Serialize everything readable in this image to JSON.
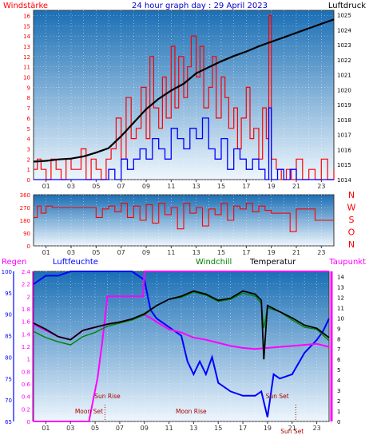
{
  "colors": {
    "wind_max": "#ff0000",
    "wind_avg": "#0000ff",
    "pressure": "#000000",
    "direction": "#ff0000",
    "humidity": "#0000ff",
    "windchill": "#008000",
    "temperature": "#000000",
    "dewpoint": "#ff00ff",
    "rain": "#ff00ff",
    "annotation": "#aa0000",
    "title": "#0000cc",
    "axis": "#333333",
    "plot_top": "#1b6fb5",
    "plot_bottom": "#eef6fd"
  },
  "chart_data": [
    {
      "type": "line",
      "title": "24 hour graph day : 29 April 2023",
      "ylabel_left": "Windstärke",
      "ylabel_right": "Luftdruck",
      "x_ticks": [
        "01",
        "03",
        "05",
        "07",
        "09",
        "11",
        "13",
        "15",
        "17",
        "19",
        "21",
        "23"
      ],
      "y_ticks_left": [
        "0",
        "1",
        "2",
        "3",
        "4",
        "5",
        "6",
        "7",
        "8",
        "9",
        "10",
        "11",
        "12",
        "13",
        "14",
        "15",
        "16"
      ],
      "y_ticks_right": [
        "1014",
        "1015",
        "1016",
        "1017",
        "1018",
        "1019",
        "1020",
        "1021",
        "1022",
        "1023",
        "1024",
        "1025"
      ],
      "xlim": [
        0,
        24
      ],
      "ylim_left": [
        0,
        16.5
      ],
      "ylim_right": [
        1014,
        1025.3
      ],
      "series": [
        {
          "name": "Windstärke",
          "role": "wind_max",
          "x": [
            0,
            0.3,
            0.6,
            1,
            1.4,
            1.8,
            2.2,
            2.6,
            3,
            3.4,
            3.8,
            4.2,
            4.6,
            5,
            5.4,
            5.8,
            6.2,
            6.6,
            7,
            7.4,
            7.8,
            8.2,
            8.6,
            9,
            9.3,
            9.6,
            10,
            10.3,
            10.6,
            11,
            11.3,
            11.6,
            12,
            12.3,
            12.6,
            13,
            13.3,
            13.6,
            14,
            14.3,
            14.6,
            15,
            15.3,
            15.6,
            16,
            16.3,
            16.6,
            17,
            17.3,
            17.6,
            18,
            18.3,
            18.6,
            18.8,
            19,
            19.4,
            19.8,
            20.2,
            20.6,
            21,
            21.5,
            22,
            22.5,
            23,
            23.5,
            24
          ],
          "y": [
            1,
            2,
            1,
            0,
            2,
            1,
            0,
            2,
            1,
            1,
            3,
            0,
            2,
            1,
            0,
            2,
            3,
            6,
            2,
            8,
            4,
            5,
            9,
            4,
            12,
            7,
            5,
            10,
            6,
            13,
            7,
            12,
            8,
            11,
            14,
            10,
            13,
            7,
            9,
            12,
            6,
            10,
            8,
            5,
            7,
            3,
            6,
            9,
            4,
            5,
            2,
            7,
            4,
            16,
            2,
            1,
            0,
            1,
            0,
            2,
            0,
            1,
            0,
            2,
            0,
            1
          ]
        },
        {
          "name": "",
          "role": "wind_avg",
          "x": [
            0,
            0.5,
            1,
            1.5,
            2,
            2.5,
            3,
            3.5,
            4,
            4.5,
            5,
            5.5,
            6,
            6.5,
            7,
            7.5,
            8,
            8.5,
            9,
            9.5,
            10,
            10.5,
            11,
            11.5,
            12,
            12.5,
            13,
            13.5,
            14,
            14.5,
            15,
            15.5,
            16,
            16.5,
            17,
            17.5,
            18,
            18.5,
            18.8,
            19,
            19.5,
            20,
            20.5,
            21,
            22,
            23,
            24
          ],
          "y": [
            0,
            0,
            0,
            0,
            0,
            0,
            0,
            0,
            0,
            0,
            0,
            0,
            1,
            0,
            2,
            1,
            2,
            3,
            2,
            4,
            3,
            2,
            5,
            4,
            3,
            5,
            4,
            6,
            3,
            2,
            4,
            1,
            3,
            2,
            1,
            2,
            1,
            0,
            7,
            0,
            1,
            0,
            1,
            0,
            0,
            0,
            0
          ]
        },
        {
          "name": "",
          "role": "pressure",
          "x": [
            0,
            1,
            2,
            3,
            4,
            5,
            6,
            7,
            8,
            9,
            10,
            11,
            12,
            13,
            14,
            15,
            16,
            17,
            18,
            19,
            20,
            21,
            22,
            23,
            24
          ],
          "y": [
            1015.2,
            1015.25,
            1015.35,
            1015.4,
            1015.55,
            1015.8,
            1016.1,
            1016.9,
            1017.8,
            1018.7,
            1019.4,
            1019.95,
            1020.4,
            1021.1,
            1021.5,
            1021.9,
            1022.25,
            1022.55,
            1022.9,
            1023.2,
            1023.5,
            1023.8,
            1024.1,
            1024.4,
            1024.7
          ]
        }
      ]
    },
    {
      "type": "line",
      "title": "",
      "ylabel_right_letters": [
        "N",
        "W",
        "S",
        "O",
        "N"
      ],
      "y_ticks_left": [
        "0",
        "90",
        "180",
        "270",
        "360"
      ],
      "x_ticks": [
        "01",
        "03",
        "05",
        "07",
        "09",
        "11",
        "13",
        "15",
        "17",
        "19",
        "21",
        "23"
      ],
      "xlim": [
        0,
        24
      ],
      "ylim": [
        0,
        360
      ],
      "series": [
        {
          "name": "",
          "role": "direction",
          "x": [
            0,
            0.3,
            0.6,
            1,
            1.5,
            2,
            2.5,
            3,
            3.5,
            4,
            4.5,
            5,
            5.5,
            6,
            6.5,
            7,
            7.5,
            8,
            8.5,
            9,
            9.5,
            10,
            10.5,
            11,
            11.5,
            12,
            12.5,
            13,
            13.5,
            14,
            14.5,
            15,
            15.5,
            16,
            16.5,
            17,
            17.5,
            18,
            18.5,
            19,
            19.5,
            20,
            20.5,
            21,
            22,
            22.5,
            23,
            24
          ],
          "y": [
            200,
            280,
            230,
            280,
            270,
            270,
            270,
            270,
            270,
            270,
            270,
            200,
            260,
            280,
            240,
            300,
            200,
            280,
            180,
            290,
            160,
            300,
            220,
            270,
            120,
            300,
            230,
            270,
            140,
            260,
            220,
            300,
            180,
            280,
            260,
            300,
            240,
            280,
            250,
            230,
            230,
            230,
            100,
            260,
            260,
            180,
            180,
            180
          ]
        }
      ]
    },
    {
      "type": "line",
      "title": "",
      "legend": [
        "Regen",
        "Luftfeuchte",
        "Windchill",
        "Temperatur",
        "Taupunkt"
      ],
      "y_ticks_rain": [
        "0",
        "0.2",
        "0.4",
        "0.6",
        "0.8",
        "1",
        "1.2",
        "1.4",
        "1.6",
        "1.8",
        "2",
        "2.2",
        "2.4"
      ],
      "y_ticks_humidity": [
        "65",
        "70",
        "75",
        "80",
        "85",
        "90",
        "95",
        "100"
      ],
      "y_ticks_temp": [
        "0",
        "1",
        "2",
        "3",
        "4",
        "5",
        "6",
        "7",
        "8",
        "9",
        "10",
        "11",
        "12",
        "13",
        "14"
      ],
      "x_ticks": [
        "01",
        "03",
        "05",
        "07",
        "09",
        "11",
        "13",
        "15",
        "17",
        "19",
        "21",
        "23"
      ],
      "xlim": [
        0,
        24
      ],
      "ylim_rain": [
        0,
        2.4
      ],
      "ylim_humidity": [
        65,
        100
      ],
      "ylim_temp": [
        0,
        14.5
      ],
      "annotations": [
        "Moon Set",
        "Sun Rise",
        "Moon Rise",
        "Sun Set",
        "Sun Set"
      ],
      "series": [
        {
          "name": "Regen",
          "role": "rain",
          "x": [
            0,
            4.5,
            4.8,
            5.2,
            5.6,
            6,
            8.9,
            9,
            24
          ],
          "y": [
            0,
            0,
            0.3,
            0.7,
            1.3,
            2,
            2,
            2.4,
            2.4
          ]
        },
        {
          "name": "Luftfeuchte",
          "role": "humidity",
          "x": [
            0,
            0.5,
            1,
            2,
            3,
            4,
            5,
            6,
            7,
            8,
            9,
            9.5,
            10,
            11,
            12,
            12.5,
            13,
            13.5,
            14,
            14.5,
            15,
            16,
            17,
            18,
            18.5,
            19,
            19.5,
            20,
            21,
            22,
            23,
            23.5,
            24
          ],
          "y": [
            97,
            98,
            99,
            99,
            100,
            100,
            100,
            100,
            100,
            100,
            98,
            91,
            89,
            87,
            85,
            79,
            76,
            79,
            76,
            80,
            74,
            72,
            71,
            71,
            72,
            66,
            76,
            75,
            76,
            81,
            84,
            86,
            89
          ]
        },
        {
          "name": "Windchill",
          "role": "windchill",
          "x": [
            0,
            1,
            2,
            3,
            4,
            5,
            6,
            7,
            8,
            9,
            10,
            11,
            12,
            13,
            14,
            15,
            16,
            17,
            18,
            18.5,
            18.7,
            19,
            20,
            21,
            22,
            23,
            24
          ],
          "y": [
            8.7,
            8.1,
            7.7,
            7.4,
            8.2,
            8.6,
            9.2,
            9.5,
            9.8,
            10.3,
            11.2,
            11.8,
            12,
            12.5,
            12.2,
            11.6,
            11.8,
            12.4,
            12.1,
            11.4,
            9,
            11,
            10.6,
            9.8,
            9.1,
            8.9,
            7.8
          ]
        },
        {
          "name": "Temperatur",
          "role": "temperature",
          "x": [
            0,
            1,
            2,
            3,
            4,
            5,
            6,
            7,
            8,
            9,
            10,
            11,
            12,
            13,
            14,
            15,
            16,
            17,
            18,
            18.5,
            18.7,
            19,
            20,
            21,
            22,
            23,
            24
          ],
          "y": [
            9.5,
            8.9,
            8.2,
            7.9,
            8.8,
            9.1,
            9.4,
            9.6,
            9.9,
            10.4,
            11.2,
            11.8,
            12.1,
            12.6,
            12.3,
            11.7,
            11.9,
            12.6,
            12.3,
            11.7,
            6,
            11.2,
            10.6,
            10,
            9.3,
            9,
            8.1
          ]
        },
        {
          "name": "Taupunkt",
          "role": "dewpoint",
          "x": [
            0,
            1,
            2,
            3,
            4,
            5,
            6,
            7,
            8,
            9,
            9.5,
            10,
            11,
            12,
            13,
            14,
            15,
            16,
            17,
            18,
            19,
            20,
            21,
            22,
            23,
            24
          ],
          "y": [
            9.4,
            8.8,
            8.2,
            7.9,
            8.8,
            9.1,
            9.4,
            9.6,
            9.9,
            10.3,
            10,
            9.6,
            8.9,
            8.6,
            8.1,
            7.9,
            7.6,
            7.3,
            7.1,
            7,
            7.1,
            7.2,
            7.3,
            7.4,
            7.5,
            7.2
          ]
        }
      ]
    }
  ]
}
